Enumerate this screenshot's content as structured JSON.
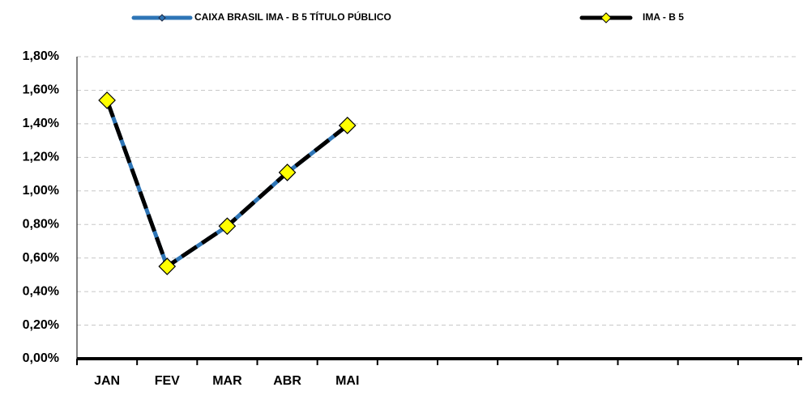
{
  "chart_data": {
    "type": "line",
    "categories": [
      "JAN",
      "FEV",
      "MAR",
      "ABR",
      "MAI",
      null,
      null,
      null,
      null,
      null,
      null,
      null
    ],
    "series": [
      {
        "name": "CAIXA BRASIL IMA - B 5 TÍTULO PÚBLICO",
        "color": "#2e75b6",
        "values": [
          1.54,
          0.55,
          0.79,
          1.11,
          1.39,
          null,
          null,
          null,
          null,
          null,
          null,
          null
        ]
      },
      {
        "name": "IMA - B 5",
        "color": "#000000",
        "values": [
          1.54,
          0.55,
          0.79,
          1.11,
          1.39,
          null,
          null,
          null,
          null,
          null,
          null,
          null
        ]
      }
    ],
    "ylim": [
      0,
      1.8
    ],
    "yticks": [
      {
        "value": 0,
        "label": "0,00%"
      },
      {
        "value": 0.2,
        "label": "0,20%"
      },
      {
        "value": 0.4,
        "label": "0,40%"
      },
      {
        "value": 0.6,
        "label": "0,60%"
      },
      {
        "value": 0.8,
        "label": "0,80%"
      },
      {
        "value": 1.0,
        "label": "1,00%"
      },
      {
        "value": 1.2,
        "label": "1,20%"
      },
      {
        "value": 1.4,
        "label": "1,40%"
      },
      {
        "value": 1.6,
        "label": "1,60%"
      },
      {
        "value": 1.8,
        "label": "1,80%"
      }
    ],
    "grid": true
  }
}
